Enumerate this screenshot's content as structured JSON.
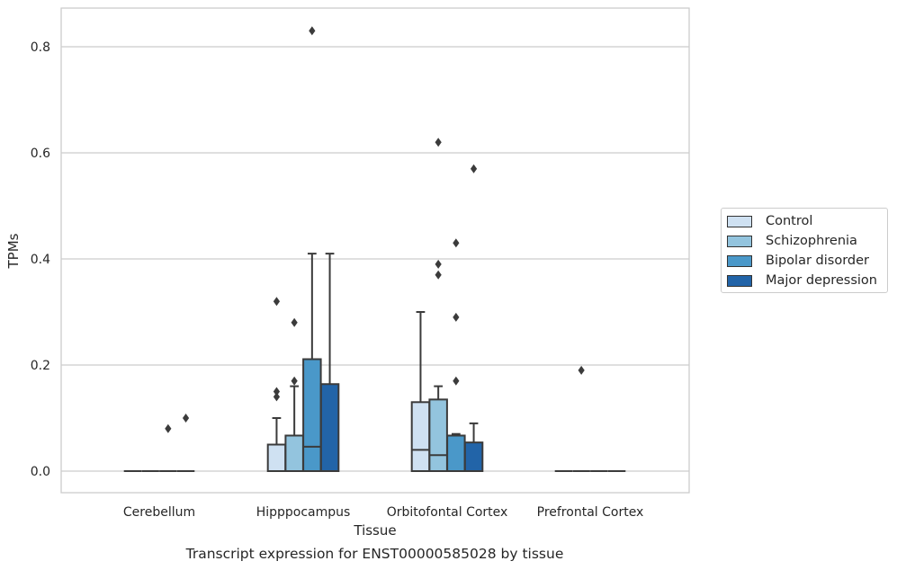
{
  "chart_data": {
    "type": "box",
    "caption": "Transcript expression for ENST00000585028 by tissue",
    "xlabel": "Tissue",
    "ylabel": "TPMs",
    "ylim": [
      -0.04,
      0.873
    ],
    "yticks": [
      0.0,
      0.2,
      0.4,
      0.6,
      0.8
    ],
    "ytick_labels": [
      "0.0",
      "0.2",
      "0.4",
      "0.6",
      "0.8"
    ],
    "grid": true,
    "legend_position": "right",
    "categories": [
      "Cerebellum",
      "Hipppocampus",
      "Orbitofontal Cortex",
      "Prefrontal Cortex"
    ],
    "series": [
      {
        "name": "Control",
        "color": "#cfe1f2",
        "boxes": [
          {
            "q1": 0.0,
            "median": 0.0,
            "q3": 0.0,
            "whisker_low": 0.0,
            "whisker_high": 0.0,
            "outliers": []
          },
          {
            "q1": 0.0,
            "median": 0.0,
            "q3": 0.05,
            "whisker_low": 0.0,
            "whisker_high": 0.1,
            "outliers": [
              0.14,
              0.15,
              0.32
            ]
          },
          {
            "q1": 0.0,
            "median": 0.04,
            "q3": 0.13,
            "whisker_low": 0.0,
            "whisker_high": 0.3,
            "outliers": []
          },
          {
            "q1": 0.0,
            "median": 0.0,
            "q3": 0.0,
            "whisker_low": 0.0,
            "whisker_high": 0.0,
            "outliers": []
          }
        ]
      },
      {
        "name": "Schizophrenia",
        "color": "#93c4de",
        "boxes": [
          {
            "q1": 0.0,
            "median": 0.0,
            "q3": 0.0,
            "whisker_low": 0.0,
            "whisker_high": 0.0,
            "outliers": []
          },
          {
            "q1": 0.0,
            "median": 0.0,
            "q3": 0.067,
            "whisker_low": 0.0,
            "whisker_high": 0.16,
            "outliers": [
              0.17,
              0.28
            ]
          },
          {
            "q1": 0.0,
            "median": 0.03,
            "q3": 0.135,
            "whisker_low": 0.0,
            "whisker_high": 0.16,
            "outliers": [
              0.37,
              0.39,
              0.62
            ]
          },
          {
            "q1": 0.0,
            "median": 0.0,
            "q3": 0.0,
            "whisker_low": 0.0,
            "whisker_high": 0.0,
            "outliers": [
              0.19
            ]
          }
        ]
      },
      {
        "name": "Bipolar disorder",
        "color": "#4a98c9",
        "boxes": [
          {
            "q1": 0.0,
            "median": 0.0,
            "q3": 0.0,
            "whisker_low": 0.0,
            "whisker_high": 0.0,
            "outliers": [
              0.08
            ]
          },
          {
            "q1": 0.0,
            "median": 0.046,
            "q3": 0.211,
            "whisker_low": 0.0,
            "whisker_high": 0.41,
            "outliers": [
              0.83
            ]
          },
          {
            "q1": 0.0,
            "median": 0.067,
            "q3": 0.067,
            "whisker_low": 0.0,
            "whisker_high": 0.07,
            "outliers": [
              0.17,
              0.29,
              0.43
            ]
          },
          {
            "q1": 0.0,
            "median": 0.0,
            "q3": 0.0,
            "whisker_low": 0.0,
            "whisker_high": 0.0,
            "outliers": []
          }
        ]
      },
      {
        "name": "Major depression",
        "color": "#2264a8",
        "boxes": [
          {
            "q1": 0.0,
            "median": 0.0,
            "q3": 0.0,
            "whisker_low": 0.0,
            "whisker_high": 0.0,
            "outliers": [
              0.1
            ]
          },
          {
            "q1": 0.0,
            "median": 0.0,
            "q3": 0.164,
            "whisker_low": 0.0,
            "whisker_high": 0.41,
            "outliers": []
          },
          {
            "q1": 0.0,
            "median": 0.0,
            "q3": 0.054,
            "whisker_low": 0.0,
            "whisker_high": 0.09,
            "outliers": [
              0.57
            ]
          },
          {
            "q1": 0.0,
            "median": 0.0,
            "q3": 0.0,
            "whisker_low": 0.0,
            "whisker_high": 0.0,
            "outliers": []
          }
        ]
      }
    ]
  }
}
